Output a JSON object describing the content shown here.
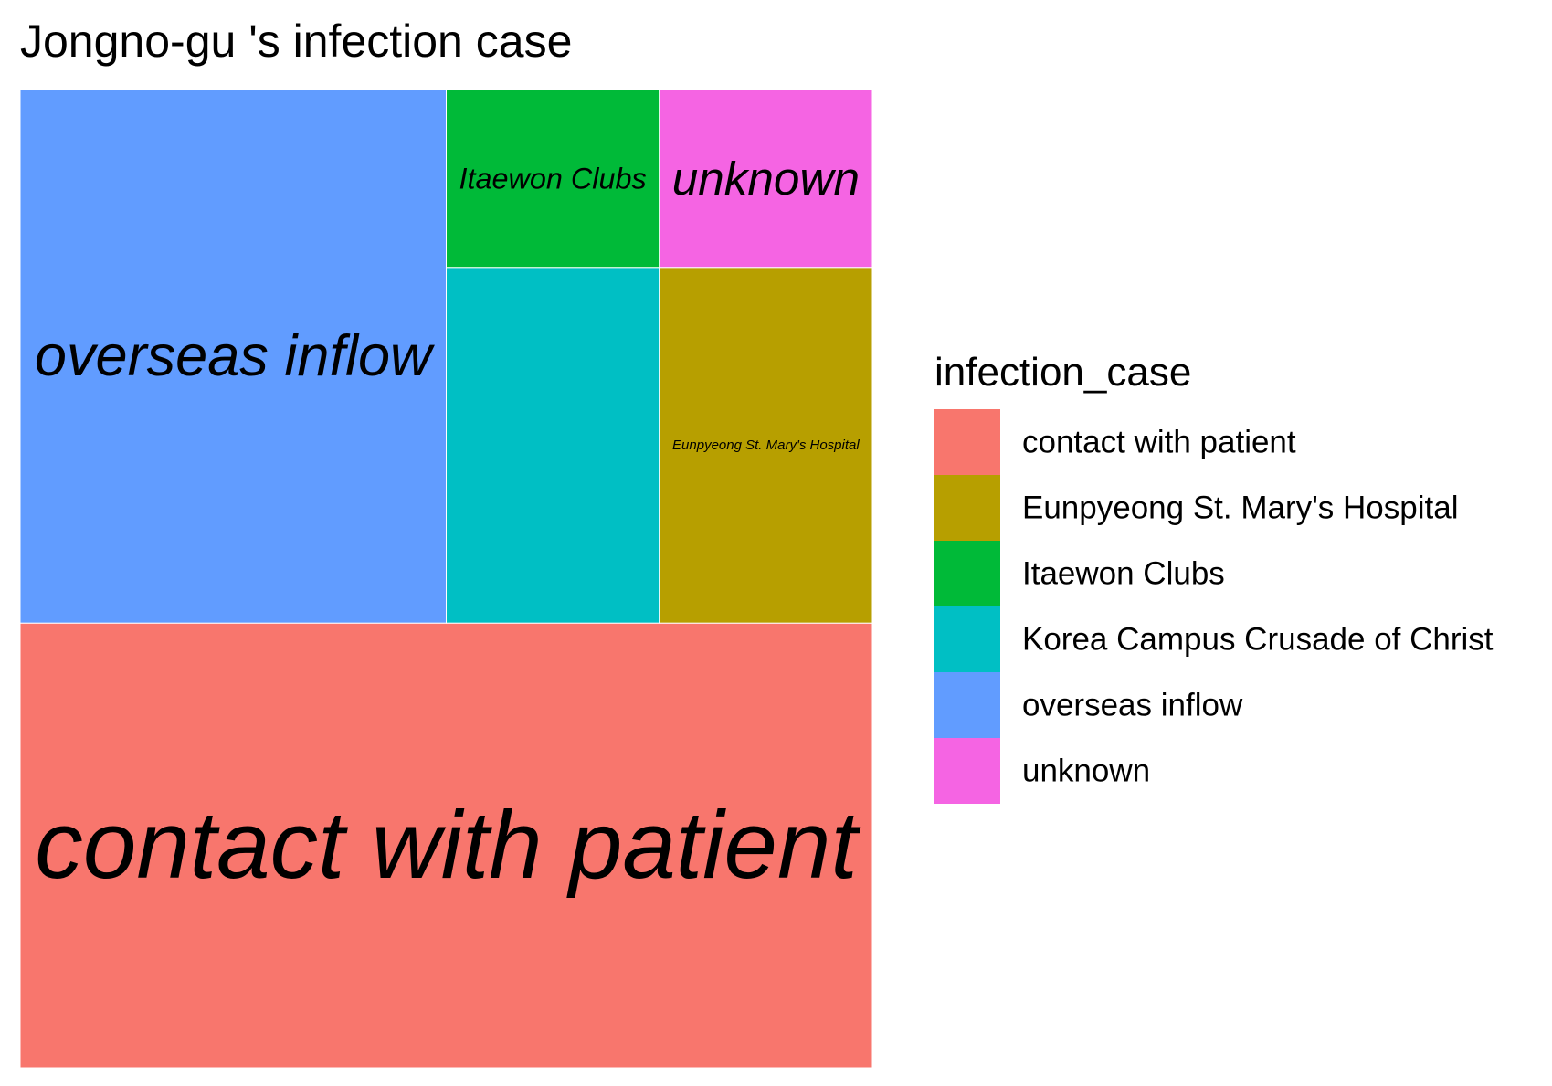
{
  "chart_data": {
    "type": "treemap",
    "title": "Jongno-gu 's infection case",
    "legend": {
      "title": "infection_case",
      "position": "right",
      "entries": [
        {
          "label": "contact with patient",
          "color": "#F8766D"
        },
        {
          "label": "Eunpyeong St. Mary's Hospital",
          "color": "#B79F00"
        },
        {
          "label": "Itaewon Clubs",
          "color": "#00BA38"
        },
        {
          "label": "Korea Campus Crusade of Christ",
          "color": "#00BFC4"
        },
        {
          "label": "overseas inflow",
          "color": "#619CFF"
        },
        {
          "label": "unknown",
          "color": "#F564E3"
        }
      ]
    },
    "tiles": [
      {
        "category": "contact with patient",
        "value": 10,
        "label": "contact with patient",
        "color": "#F8766D"
      },
      {
        "category": "overseas inflow",
        "value": 6,
        "label": "overseas inflow",
        "color": "#619CFF"
      },
      {
        "category": "Korea Campus Crusade of Christ",
        "value": 2,
        "label": "",
        "color": "#00BFC4"
      },
      {
        "category": "Eunpyeong St. Mary's Hospital",
        "value": 2,
        "label": "Eunpyeong St. Mary's Hospital",
        "color": "#B79F00"
      },
      {
        "category": "Itaewon Clubs",
        "value": 1,
        "label": "Itaewon Clubs",
        "color": "#00BA38"
      },
      {
        "category": "unknown",
        "value": 1,
        "label": "unknown",
        "color": "#F564E3"
      }
    ]
  }
}
